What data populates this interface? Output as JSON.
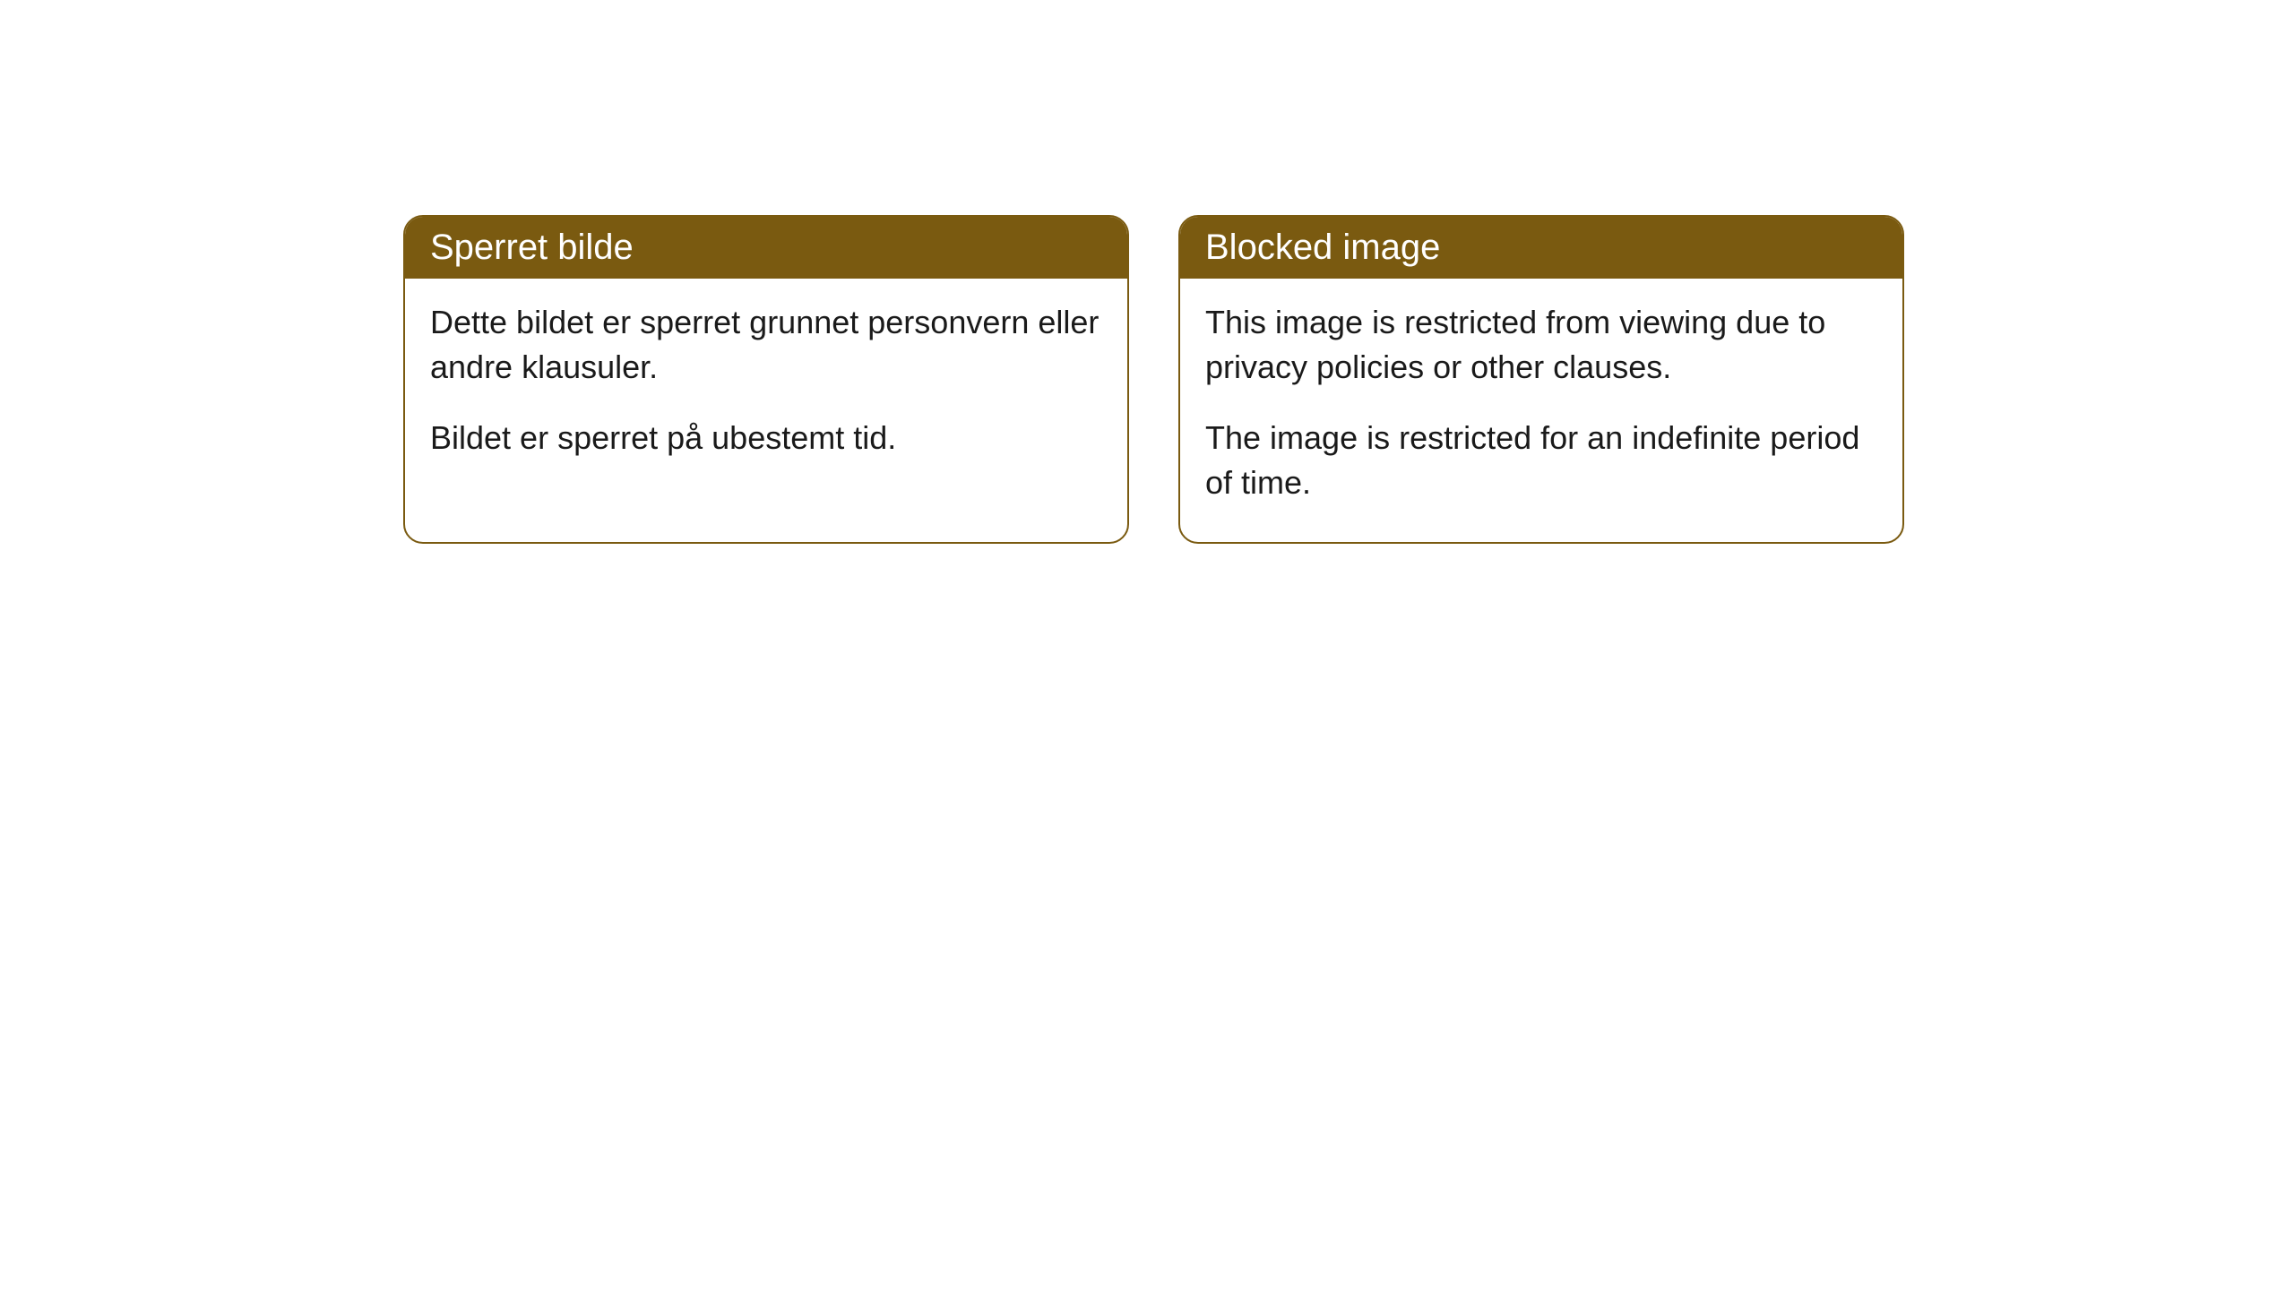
{
  "cards": [
    {
      "title": "Sperret bilde",
      "paragraph1": "Dette bildet er sperret grunnet personvern eller andre klausuler.",
      "paragraph2": "Bildet er sperret på ubestemt tid."
    },
    {
      "title": "Blocked image",
      "paragraph1": "This image is restricted from viewing due to privacy policies or other clauses.",
      "paragraph2": "The image is restricted for an indefinite period of time."
    }
  ],
  "styling": {
    "header_background_color": "#7a5a10",
    "header_text_color": "#ffffff",
    "border_color": "#7a5a10",
    "card_background_color": "#ffffff",
    "body_text_color": "#1a1a1a",
    "page_background_color": "#ffffff",
    "border_radius": 22,
    "title_fontsize": 40,
    "body_fontsize": 36
  }
}
